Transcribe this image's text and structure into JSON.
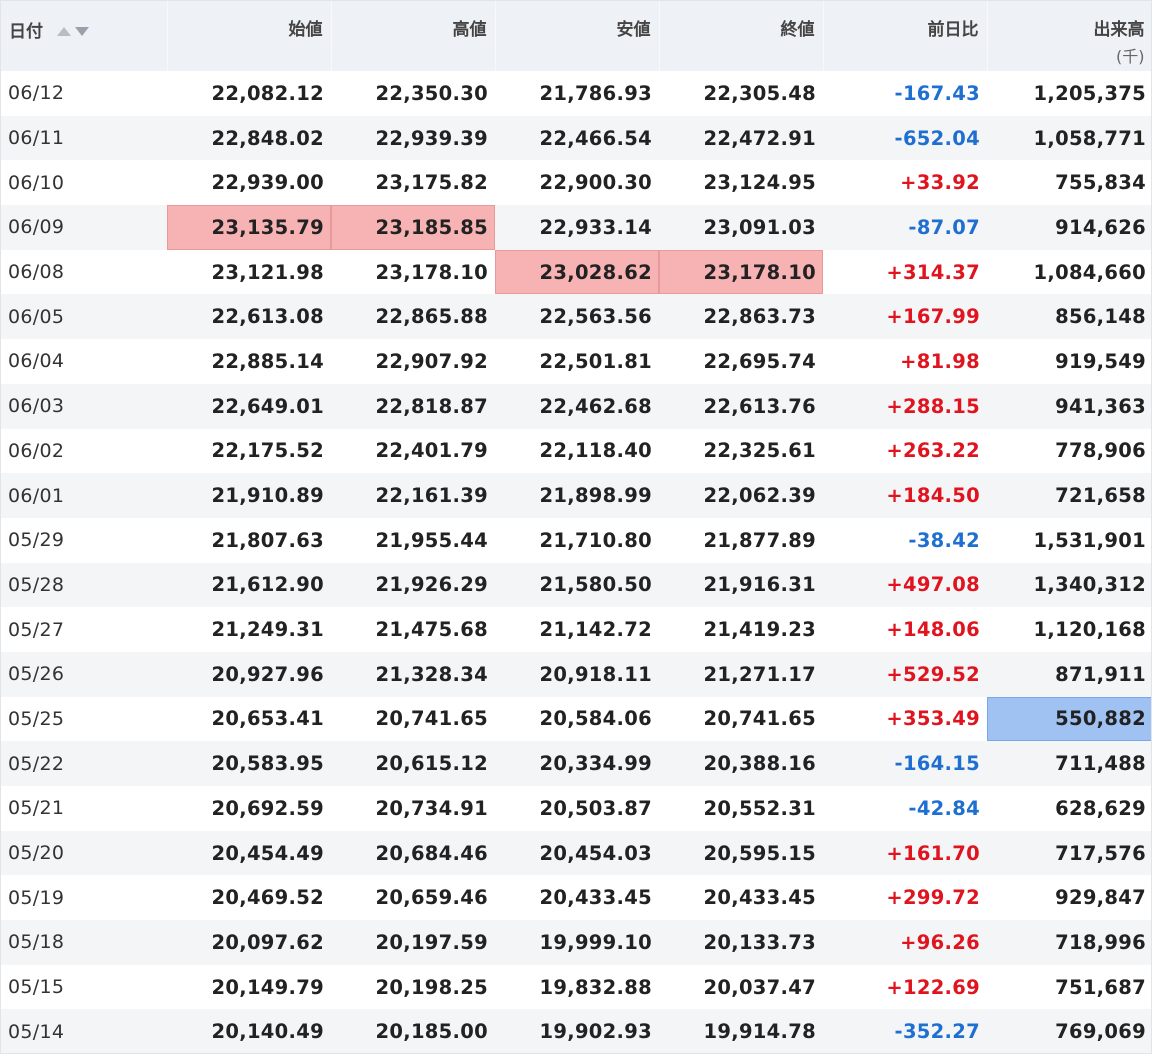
{
  "columns": {
    "date": "日付",
    "open": "始値",
    "high": "高値",
    "low": "安値",
    "close": "終値",
    "change": "前日比",
    "volume": "出来高",
    "volume_unit": "(千)"
  },
  "colors": {
    "positive": "#e0141e",
    "negative": "#1f6fd1",
    "highlight_red": "#f7b3b3",
    "highlight_blue": "#9fc2f2"
  },
  "rows": [
    {
      "date": "06/12",
      "open": "22,082.12",
      "high": "22,350.30",
      "low": "21,786.93",
      "close": "22,305.48",
      "change": "-167.43",
      "volume": "1,205,375"
    },
    {
      "date": "06/11",
      "open": "22,848.02",
      "high": "22,939.39",
      "low": "22,466.54",
      "close": "22,472.91",
      "change": "-652.04",
      "volume": "1,058,771"
    },
    {
      "date": "06/10",
      "open": "22,939.00",
      "high": "23,175.82",
      "low": "22,900.30",
      "close": "23,124.95",
      "change": "+33.92",
      "volume": "755,834"
    },
    {
      "date": "06/09",
      "open": "23,135.79",
      "high": "23,185.85",
      "low": "22,933.14",
      "close": "23,091.03",
      "change": "-87.07",
      "volume": "914,626"
    },
    {
      "date": "06/08",
      "open": "23,121.98",
      "high": "23,178.10",
      "low": "23,028.62",
      "close": "23,178.10",
      "change": "+314.37",
      "volume": "1,084,660"
    },
    {
      "date": "06/05",
      "open": "22,613.08",
      "high": "22,865.88",
      "low": "22,563.56",
      "close": "22,863.73",
      "change": "+167.99",
      "volume": "856,148"
    },
    {
      "date": "06/04",
      "open": "22,885.14",
      "high": "22,907.92",
      "low": "22,501.81",
      "close": "22,695.74",
      "change": "+81.98",
      "volume": "919,549"
    },
    {
      "date": "06/03",
      "open": "22,649.01",
      "high": "22,818.87",
      "low": "22,462.68",
      "close": "22,613.76",
      "change": "+288.15",
      "volume": "941,363"
    },
    {
      "date": "06/02",
      "open": "22,175.52",
      "high": "22,401.79",
      "low": "22,118.40",
      "close": "22,325.61",
      "change": "+263.22",
      "volume": "778,906"
    },
    {
      "date": "06/01",
      "open": "21,910.89",
      "high": "22,161.39",
      "low": "21,898.99",
      "close": "22,062.39",
      "change": "+184.50",
      "volume": "721,658"
    },
    {
      "date": "05/29",
      "open": "21,807.63",
      "high": "21,955.44",
      "low": "21,710.80",
      "close": "21,877.89",
      "change": "-38.42",
      "volume": "1,531,901"
    },
    {
      "date": "05/28",
      "open": "21,612.90",
      "high": "21,926.29",
      "low": "21,580.50",
      "close": "21,916.31",
      "change": "+497.08",
      "volume": "1,340,312"
    },
    {
      "date": "05/27",
      "open": "21,249.31",
      "high": "21,475.68",
      "low": "21,142.72",
      "close": "21,419.23",
      "change": "+148.06",
      "volume": "1,120,168"
    },
    {
      "date": "05/26",
      "open": "20,927.96",
      "high": "21,328.34",
      "low": "20,918.11",
      "close": "21,271.17",
      "change": "+529.52",
      "volume": "871,911"
    },
    {
      "date": "05/25",
      "open": "20,653.41",
      "high": "20,741.65",
      "low": "20,584.06",
      "close": "20,741.65",
      "change": "+353.49",
      "volume": "550,882"
    },
    {
      "date": "05/22",
      "open": "20,583.95",
      "high": "20,615.12",
      "low": "20,334.99",
      "close": "20,388.16",
      "change": "-164.15",
      "volume": "711,488"
    },
    {
      "date": "05/21",
      "open": "20,692.59",
      "high": "20,734.91",
      "low": "20,503.87",
      "close": "20,552.31",
      "change": "-42.84",
      "volume": "628,629"
    },
    {
      "date": "05/20",
      "open": "20,454.49",
      "high": "20,684.46",
      "low": "20,454.03",
      "close": "20,595.15",
      "change": "+161.70",
      "volume": "717,576"
    },
    {
      "date": "05/19",
      "open": "20,469.52",
      "high": "20,659.46",
      "low": "20,433.45",
      "close": "20,433.45",
      "change": "+299.72",
      "volume": "929,847"
    },
    {
      "date": "05/18",
      "open": "20,097.62",
      "high": "20,197.59",
      "low": "19,999.10",
      "close": "20,133.73",
      "change": "+96.26",
      "volume": "718,996"
    },
    {
      "date": "05/15",
      "open": "20,149.79",
      "high": "20,198.25",
      "low": "19,832.88",
      "close": "20,037.47",
      "change": "+122.69",
      "volume": "751,687"
    },
    {
      "date": "05/14",
      "open": "20,140.49",
      "high": "20,185.00",
      "low": "19,902.93",
      "close": "19,914.78",
      "change": "-352.27",
      "volume": "769,069"
    }
  ],
  "highlights": [
    {
      "row": 3,
      "col": "open",
      "color": "red"
    },
    {
      "row": 3,
      "col": "high",
      "color": "red"
    },
    {
      "row": 4,
      "col": "low",
      "color": "red"
    },
    {
      "row": 4,
      "col": "close",
      "color": "red"
    },
    {
      "row": 14,
      "col": "volume",
      "color": "blue"
    }
  ]
}
